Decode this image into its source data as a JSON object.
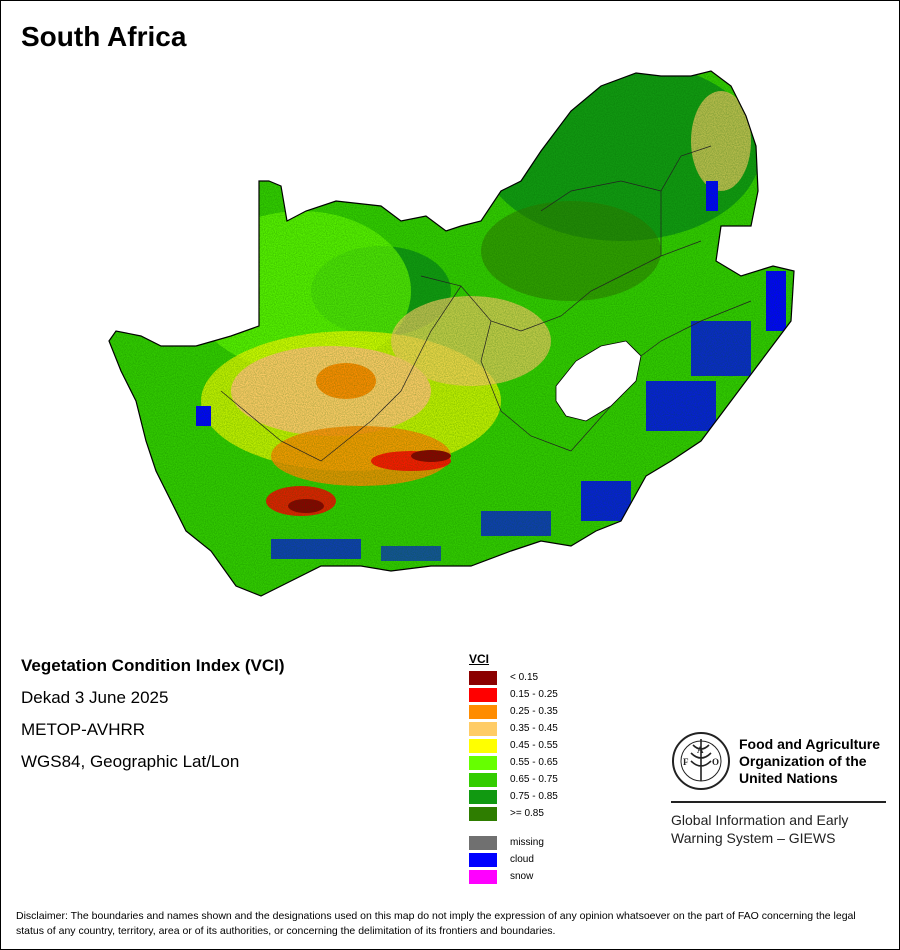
{
  "title": "South Africa",
  "info": {
    "index_name": "Vegetation Condition Index (VCI)",
    "period": "Dekad 3 June 2025",
    "sensor": "METOP-AVHRR",
    "projection": "WGS84, Geographic Lat/Lon"
  },
  "legend": {
    "title": "VCI",
    "classes": [
      {
        "label": "< 0.15",
        "color": "#8b0000"
      },
      {
        "label": "0.15 - 0.25",
        "color": "#ff0000"
      },
      {
        "label": "0.25 - 0.35",
        "color": "#ff8c00"
      },
      {
        "label": "0.35 - 0.45",
        "color": "#ffcc66"
      },
      {
        "label": "0.45 - 0.55",
        "color": "#ffff00"
      },
      {
        "label": "0.55 - 0.65",
        "color": "#66ff00"
      },
      {
        "label": "0.65 - 0.75",
        "color": "#33cc00"
      },
      {
        "label": "0.75 - 0.85",
        "color": "#119911"
      },
      {
        "label": ">= 0.85",
        "color": "#2e7d00"
      }
    ],
    "special": [
      {
        "label": "missing",
        "color": "#707070"
      },
      {
        "label": "cloud",
        "color": "#0000ff"
      },
      {
        "label": "snow",
        "color": "#ff00ff"
      }
    ]
  },
  "org": {
    "name_line1": "Food and Agriculture",
    "name_line2": "Organization of the",
    "name_line3": "United Nations",
    "system_line1": "Global Information and Early",
    "system_line2": "Warning System – GIEWS",
    "logo_text": "FIAT PANIS"
  },
  "disclaimer": "Disclaimer: The boundaries and names shown and the designations used on this map do not imply the expression of any opinion whatsoever on the part of FAO concerning the legal status of any country, territory, area or of its authorities, or concerning the delimitation of its frontiers and boundaries."
}
